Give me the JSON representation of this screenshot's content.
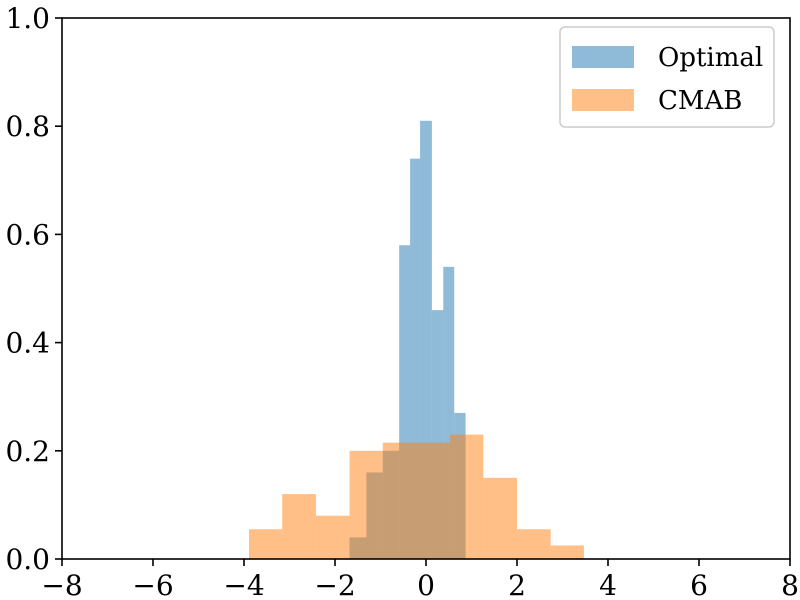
{
  "chart_data": {
    "type": "bar",
    "xlim": [
      -8,
      8
    ],
    "ylim": [
      0,
      1.0
    ],
    "x_ticks": [
      -8,
      -6,
      -4,
      -2,
      0,
      2,
      4,
      6,
      8
    ],
    "x_tick_labels": [
      "−8",
      "−6",
      "−4",
      "−2",
      "0",
      "2",
      "4",
      "6",
      "8"
    ],
    "y_ticks": [
      0.0,
      0.2,
      0.4,
      0.6,
      0.8,
      1.0
    ],
    "y_tick_labels": [
      "0.0",
      "0.2",
      "0.4",
      "0.6",
      "0.8",
      "1.0"
    ],
    "grid": false,
    "legend_position": "top-right",
    "series": [
      {
        "name": "Optimal",
        "color": "#1f77b4",
        "opacity": 0.5,
        "bins": [
          {
            "x0": -1.68,
            "x1": -1.31,
            "value": 0.04
          },
          {
            "x0": -1.31,
            "x1": -0.95,
            "value": 0.16
          },
          {
            "x0": -0.95,
            "x1": -0.59,
            "value": 0.2
          },
          {
            "x0": -0.59,
            "x1": -0.35,
            "value": 0.58
          },
          {
            "x0": -0.35,
            "x1": -0.13,
            "value": 0.74
          },
          {
            "x0": -0.13,
            "x1": 0.13,
            "value": 0.81
          },
          {
            "x0": 0.13,
            "x1": 0.38,
            "value": 0.46
          },
          {
            "x0": 0.38,
            "x1": 0.62,
            "value": 0.54
          },
          {
            "x0": 0.62,
            "x1": 0.87,
            "value": 0.27
          }
        ]
      },
      {
        "name": "CMAB",
        "color": "#ff7f0e",
        "opacity": 0.5,
        "bins": [
          {
            "x0": -3.89,
            "x1": -3.16,
            "value": 0.055
          },
          {
            "x0": -3.16,
            "x1": -2.42,
            "value": 0.12
          },
          {
            "x0": -2.42,
            "x1": -1.68,
            "value": 0.08
          },
          {
            "x0": -1.68,
            "x1": -0.95,
            "value": 0.2
          },
          {
            "x0": -0.95,
            "x1": -0.21,
            "value": 0.215
          },
          {
            "x0": -0.21,
            "x1": 0.53,
            "value": 0.215
          },
          {
            "x0": 0.53,
            "x1": 1.26,
            "value": 0.23
          },
          {
            "x0": 1.26,
            "x1": 2.0,
            "value": 0.15
          },
          {
            "x0": 2.0,
            "x1": 2.74,
            "value": 0.055
          },
          {
            "x0": 2.74,
            "x1": 3.47,
            "value": 0.025
          }
        ]
      }
    ]
  }
}
